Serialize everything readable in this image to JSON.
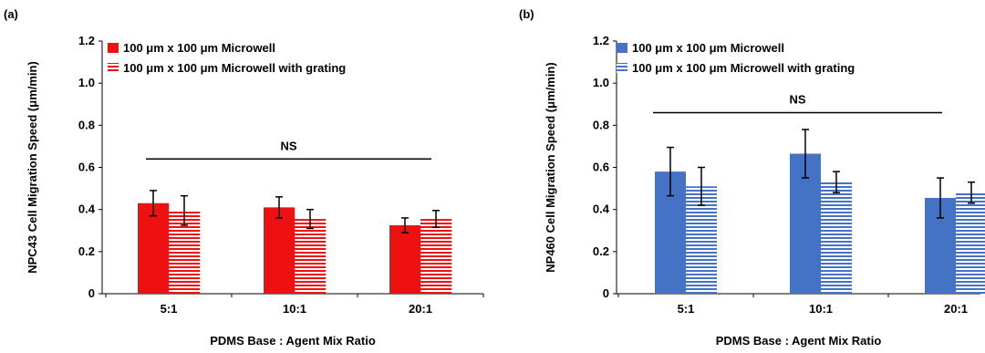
{
  "chart_data": [
    {
      "panel_label": "(a)",
      "type": "bar",
      "categories": [
        "5:1",
        "10:1",
        "20:1"
      ],
      "xlabel": "PDMS Base : Agent Mix Ratio",
      "ylabel": "NPC43 Cell Migration Speed (μm/min)",
      "ylim": [
        0,
        1.2
      ],
      "yticks": [
        "0",
        "0.2",
        "0.4",
        "0.6",
        "0.8",
        "1.0",
        "1.2"
      ],
      "series": [
        {
          "name": "100 μm x 100 μm Microwell",
          "values": [
            0.43,
            0.41,
            0.325
          ],
          "errors": [
            0.06,
            0.05,
            0.035
          ],
          "color": "#ee1111",
          "pattern": "solid"
        },
        {
          "name": "100 μm x 100 μm Microwell with grating",
          "values": [
            0.395,
            0.355,
            0.355
          ],
          "errors": [
            0.07,
            0.045,
            0.04
          ],
          "color": "#ee1111",
          "pattern": "horizontal-stripes"
        }
      ],
      "annotation": {
        "text": "NS",
        "line_y": 0.64
      },
      "legend": "top-left",
      "grid": false
    },
    {
      "panel_label": "(b)",
      "type": "bar",
      "categories": [
        "5:1",
        "10:1",
        "20:1"
      ],
      "xlabel": "PDMS Base : Agent Mix Ratio",
      "ylabel": "NP460 Cell Migration Speed (μm/min)",
      "ylim": [
        0,
        1.2
      ],
      "yticks": [
        "0",
        "0.2",
        "0.4",
        "0.6",
        "0.8",
        "1.0",
        "1.2"
      ],
      "series": [
        {
          "name": "100 μm x 100 μm Microwell",
          "values": [
            0.58,
            0.665,
            0.455
          ],
          "errors": [
            0.115,
            0.115,
            0.095
          ],
          "color": "#4472c4",
          "pattern": "solid"
        },
        {
          "name": "100 μm x 100 μm Microwell with grating",
          "values": [
            0.51,
            0.53,
            0.48
          ],
          "errors": [
            0.09,
            0.05,
            0.05
          ],
          "color": "#4472c4",
          "pattern": "horizontal-stripes"
        }
      ],
      "annotation": {
        "text": "NS",
        "line_y": 0.86
      },
      "legend": "top-left",
      "grid": false
    }
  ]
}
